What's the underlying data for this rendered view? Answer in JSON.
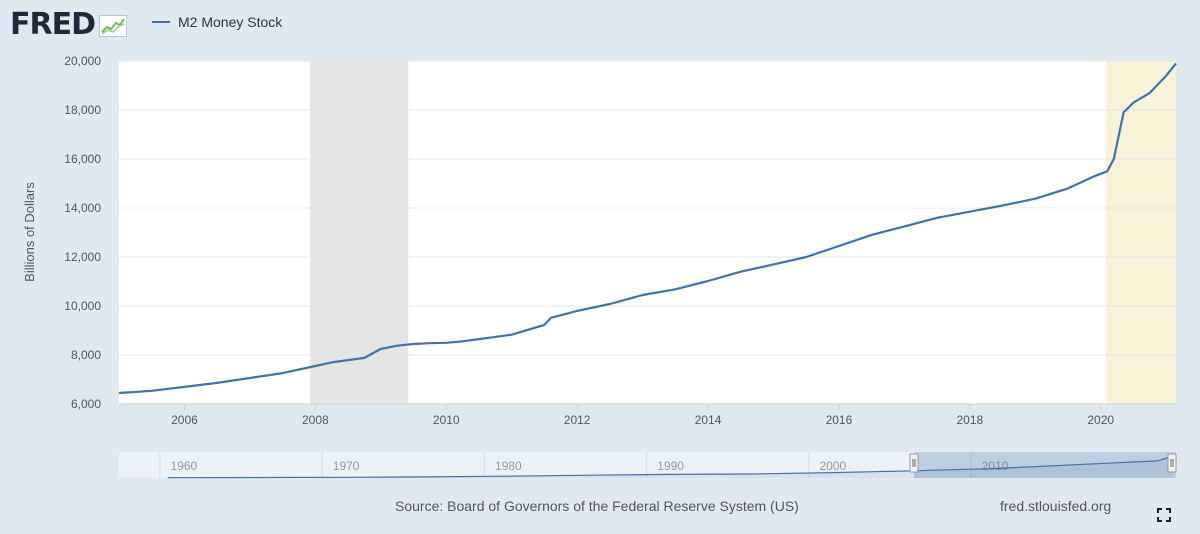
{
  "header": {
    "logo_text": "FRED",
    "logo_icon": "fred-chart-icon"
  },
  "legend": {
    "label": "M2 Money Stock",
    "color": "#4472a8"
  },
  "footer": {
    "source": "Source: Board of Governors of the Federal Reserve System (US)",
    "site": "fred.stlouisfed.org",
    "fullscreen_icon": "fullscreen-icon"
  },
  "colors": {
    "background": "#e1e9f0",
    "plot": "#ffffff",
    "recession": "#e5e5e5",
    "highlight": "#f6f3d9",
    "line": "#4472a8"
  },
  "chart_data": {
    "type": "line",
    "title": "",
    "xlabel": "",
    "ylabel": "Billions of Dollars",
    "xlim": [
      2005.0,
      2021.15
    ],
    "ylim": [
      6000,
      20000
    ],
    "yticks": [
      6000,
      8000,
      10000,
      12000,
      14000,
      16000,
      18000,
      20000
    ],
    "ytick_labels": [
      "6,000",
      "8,000",
      "10,000",
      "12,000",
      "14,000",
      "16,000",
      "18,000",
      "20,000"
    ],
    "xticks": [
      2006,
      2008,
      2010,
      2012,
      2014,
      2016,
      2018,
      2020
    ],
    "xtick_labels": [
      "2006",
      "2008",
      "2010",
      "2012",
      "2014",
      "2016",
      "2018",
      "2020"
    ],
    "grid": true,
    "shaded_periods": [
      {
        "kind": "recession",
        "start": 2007.92,
        "end": 2009.42
      },
      {
        "kind": "recession",
        "start": 2020.08,
        "end": 2021.15
      }
    ],
    "series": [
      {
        "name": "M2 Money Stock",
        "x": [
          2005.0,
          2005.5,
          2006.0,
          2006.5,
          2007.0,
          2007.5,
          2008.0,
          2008.25,
          2008.75,
          2009.0,
          2009.25,
          2009.5,
          2009.75,
          2010.0,
          2010.25,
          2010.5,
          2011.0,
          2011.5,
          2011.6,
          2012.0,
          2012.5,
          2013.0,
          2013.5,
          2014.0,
          2014.5,
          2015.0,
          2015.5,
          2016.0,
          2016.5,
          2017.0,
          2017.5,
          2018.0,
          2018.5,
          2019.0,
          2019.5,
          2019.9,
          2020.1,
          2020.2,
          2020.35,
          2020.5,
          2020.75,
          2021.0,
          2021.15
        ],
        "y": [
          6450,
          6540,
          6700,
          6860,
          7060,
          7260,
          7550,
          7700,
          7880,
          8250,
          8380,
          8450,
          8480,
          8500,
          8560,
          8650,
          8830,
          9230,
          9520,
          9800,
          10080,
          10450,
          10680,
          11020,
          11400,
          11700,
          12000,
          12450,
          12900,
          13250,
          13600,
          13850,
          14100,
          14380,
          14800,
          15300,
          15500,
          16000,
          17900,
          18300,
          18700,
          19400,
          19900
        ]
      }
    ],
    "navigator": {
      "xticks": [
        1960,
        1970,
        1980,
        1990,
        2000,
        2010
      ],
      "xtick_labels": [
        "1960",
        "1970",
        "1980",
        "1990",
        "2000",
        "2010"
      ],
      "xlim": [
        1956,
        2021.15
      ],
      "selection": [
        2005.0,
        2021.15
      ],
      "series_x": [
        1959,
        1965,
        1970,
        1975,
        1980,
        1985,
        1990,
        1995,
        2000,
        2005,
        2010,
        2015,
        2020,
        2021
      ],
      "series_y": [
        290,
        460,
        630,
        1020,
        1600,
        2500,
        3280,
        3650,
        4920,
        6500,
        8600,
        12000,
        15500,
        19900
      ]
    }
  }
}
